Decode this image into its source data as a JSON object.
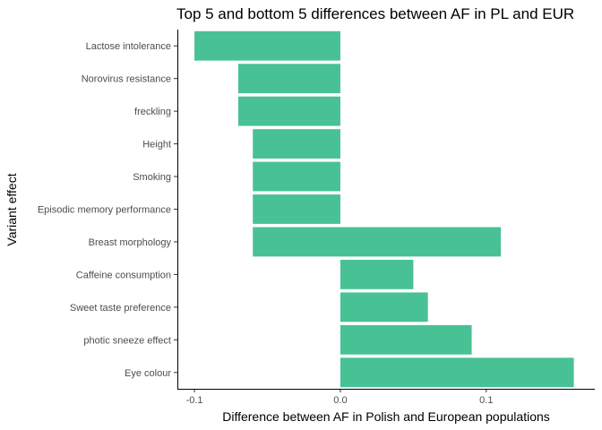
{
  "chart_data": {
    "type": "bar",
    "orientation": "horizontal",
    "title": "Top 5 and bottom 5 differences between AF in PL and EUR",
    "xlabel": "Difference between AF in Polish and European populations",
    "ylabel": "Variant effect",
    "categories": [
      "Lactose intolerance",
      "Norovirus resistance",
      "freckling",
      "Height",
      "Smoking",
      "Episodic memory performance",
      "Breast morphology",
      "Caffeine consumption",
      "Sweet taste preference",
      "photic sneeze effect",
      "Eye colour"
    ],
    "bars": [
      {
        "start": -0.1,
        "end": 0.0
      },
      {
        "start": -0.07,
        "end": 0.0
      },
      {
        "start": -0.07,
        "end": 0.0
      },
      {
        "start": -0.06,
        "end": 0.0
      },
      {
        "start": -0.06,
        "end": 0.0
      },
      {
        "start": -0.06,
        "end": 0.0
      },
      {
        "start": -0.06,
        "end": 0.11
      },
      {
        "start": 0.0,
        "end": 0.05
      },
      {
        "start": 0.0,
        "end": 0.06
      },
      {
        "start": 0.0,
        "end": 0.09
      },
      {
        "start": 0.0,
        "end": 0.16
      }
    ],
    "xlim": [
      -0.1117,
      0.1744
    ],
    "xticks": [
      -0.1,
      0.0,
      0.1
    ],
    "xtick_labels": [
      "-0.1",
      "0.0",
      "0.1"
    ],
    "bar_color": "#48c195",
    "grid": false,
    "legend": "none"
  }
}
